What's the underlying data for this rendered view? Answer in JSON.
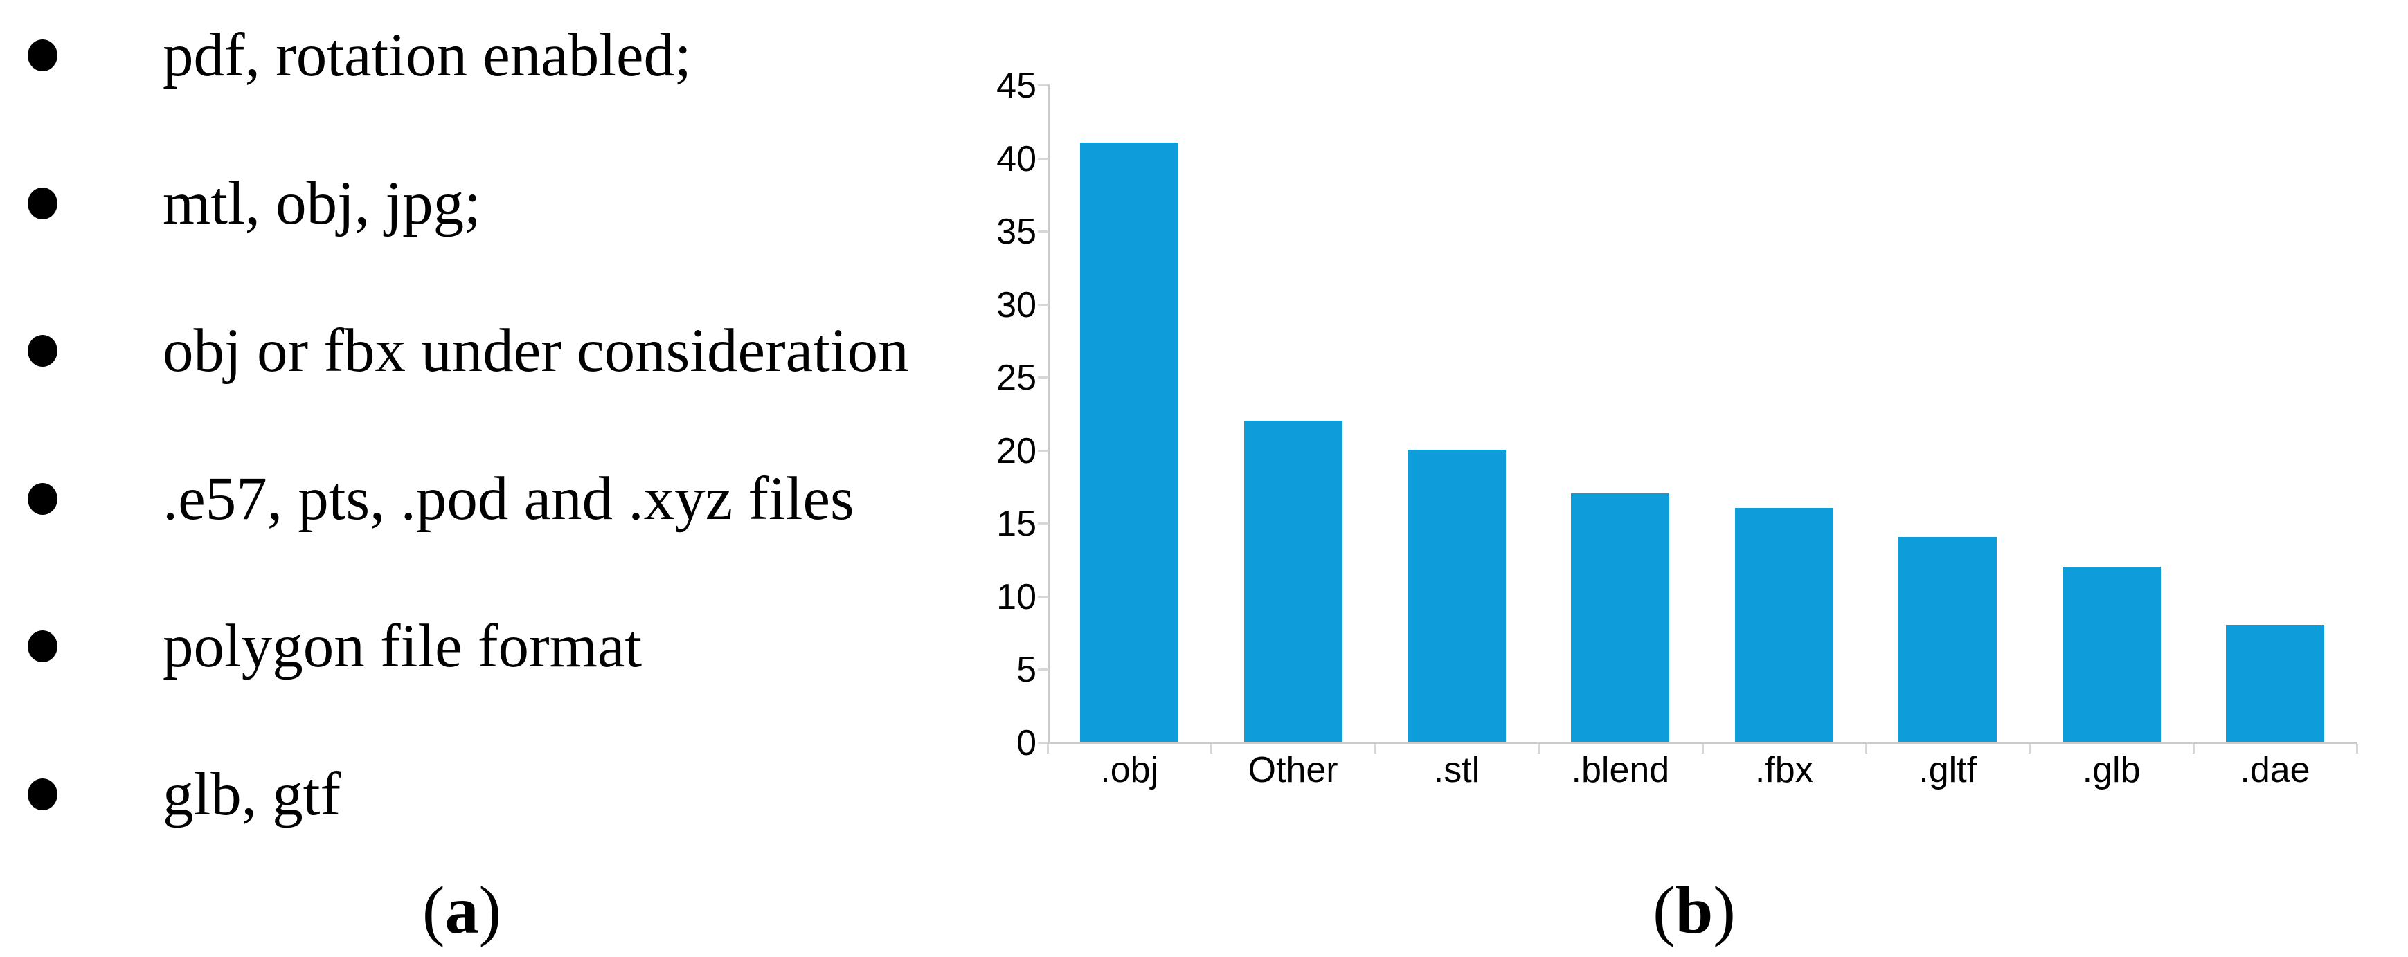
{
  "figure": {
    "panel_a": {
      "bullets": [
        "pdf, rotation enabled;",
        "mtl, obj, jpg;",
        "obj or fbx under consideration",
        ".e57, pts, .pod and .xyz files",
        "polygon file format",
        "glb, gtf"
      ],
      "caption": {
        "open": "(",
        "letter": "a",
        "close": ")"
      }
    },
    "panel_b": {
      "caption": {
        "open": "(",
        "letter": "b",
        "close": ")"
      }
    }
  },
  "chart_data": {
    "type": "bar",
    "categories": [
      ".obj",
      "Other",
      ".stl",
      ".blend",
      ".fbx",
      ".gltf",
      ".glb",
      ".dae"
    ],
    "values": [
      41,
      22,
      20,
      17,
      16,
      14,
      12,
      8
    ],
    "title": "",
    "xlabel": "",
    "ylabel": "",
    "ylim": [
      0,
      45
    ],
    "yticks": [
      0,
      5,
      10,
      15,
      20,
      25,
      30,
      35,
      40,
      45
    ],
    "grid": false,
    "legend": false,
    "bar_color": "#0E9CDB",
    "axis_color": "#CBCBCB",
    "tick_color": "#D6D6D6",
    "label_color": "#000000",
    "background": "#FFFFFF"
  }
}
